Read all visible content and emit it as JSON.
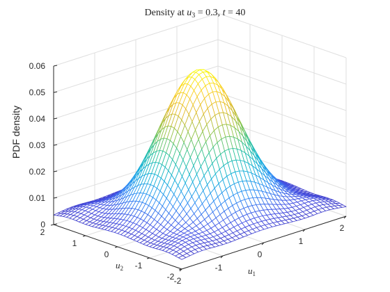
{
  "chart_data": {
    "type": "surface",
    "title": {
      "prefix": "Density at ",
      "u3_var": "u",
      "u3_sub": "3",
      "u3_val": " = 0.3, ",
      "t_var": "t",
      "t_val": " = 40"
    },
    "xlabel": {
      "var": "u",
      "sub": "1"
    },
    "ylabel_axis": {
      "var": "u",
      "sub": "2"
    },
    "zlabel": "PDF density",
    "xlim": [
      -2,
      2
    ],
    "ylim": [
      -2,
      2
    ],
    "zlim": [
      0,
      0.06
    ],
    "x_ticks": [
      "-2",
      "-1",
      "0",
      "1",
      "2"
    ],
    "y_ticks": [
      "-2",
      "-1",
      "0",
      "1",
      "2"
    ],
    "z_ticks": [
      "0",
      "0.01",
      "0.02",
      "0.03",
      "0.04",
      "0.05",
      "0.06"
    ],
    "grid": true,
    "colormap": [
      "#3e26a8",
      "#4653e4",
      "#2d8ef5",
      "#12b1d8",
      "#2ac39b",
      "#8cc449",
      "#e0b92c",
      "#fbd124",
      "#f9fb0e"
    ],
    "surface_model": {
      "description_free": true,
      "peak": 0.057,
      "peak_at": [
        0,
        0
      ],
      "edge_value": 0.003,
      "grid_lines": 41
    }
  }
}
